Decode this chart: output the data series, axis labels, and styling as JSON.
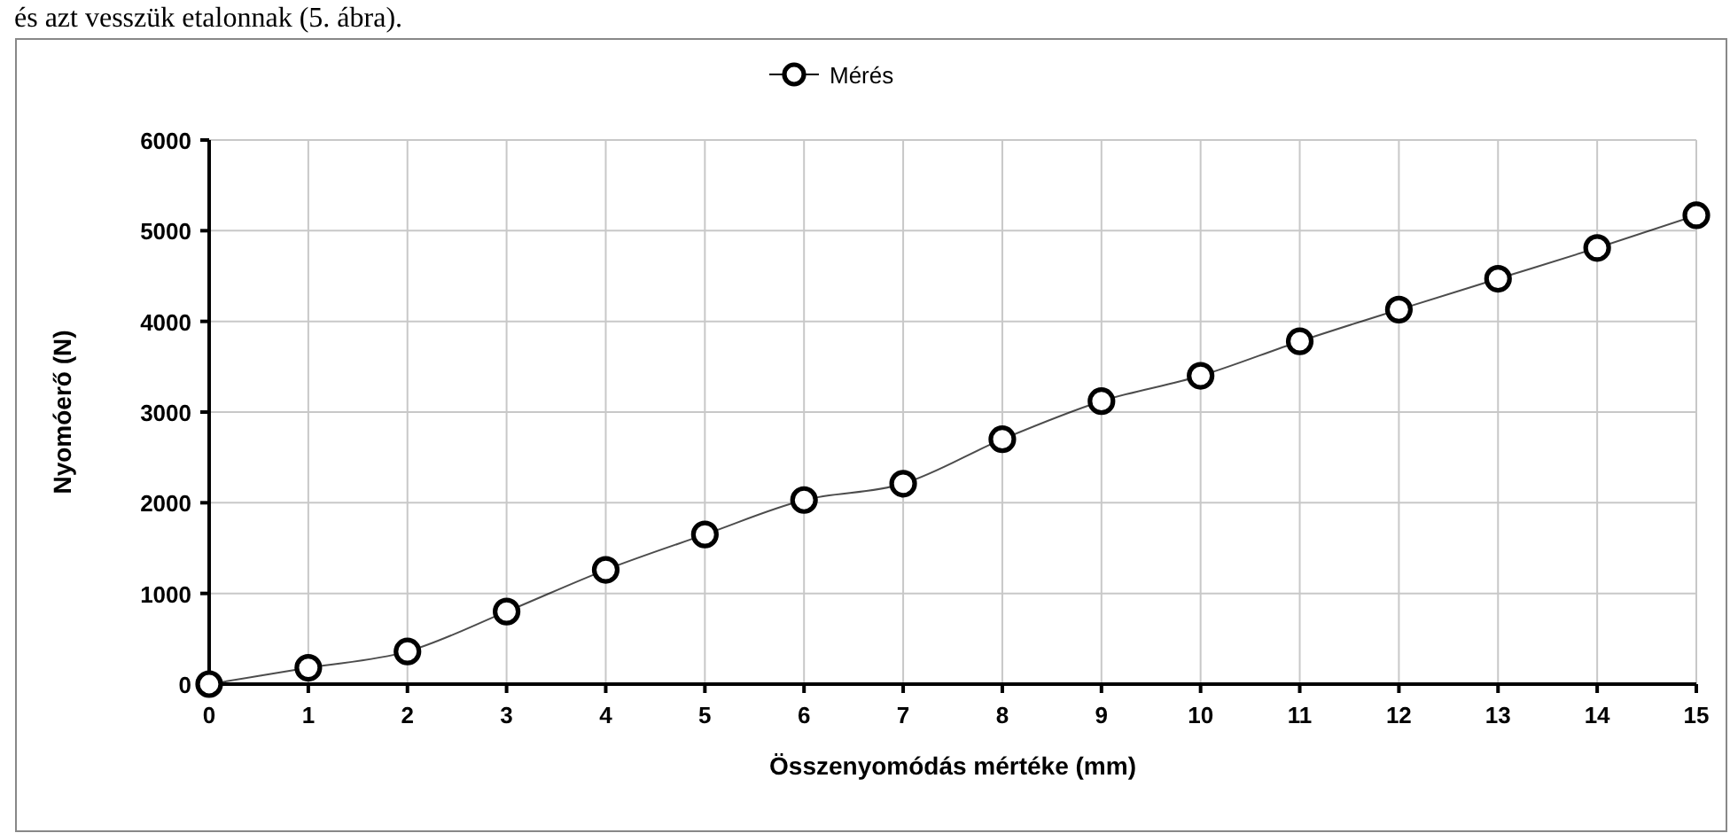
{
  "chart_data": {
    "type": "line",
    "xlabel": "Összenyomódás mértéke (mm)",
    "ylabel": "Nyomóerő (N)",
    "annotations": [
      "és azt vesszük etalonnak (5. ábra)."
    ],
    "x": [
      0,
      1,
      2,
      3,
      4,
      5,
      6,
      7,
      8,
      9,
      10,
      11,
      12,
      13,
      14,
      15
    ],
    "series": [
      {
        "name": "Mérés",
        "color": "#000000",
        "values": [
          0,
          180,
          360,
          800,
          1260,
          1650,
          2030,
          2210,
          2700,
          3120,
          3400,
          3780,
          4130,
          4470,
          4810,
          5170
        ]
      }
    ],
    "xlim": [
      0,
      15
    ],
    "xticks": [
      0,
      1,
      2,
      3,
      4,
      5,
      6,
      7,
      8,
      9,
      10,
      11,
      12,
      13,
      14,
      15
    ],
    "ylim": [
      0,
      6000
    ],
    "yticks": [
      0,
      1000,
      2000,
      3000,
      4000,
      5000,
      6000
    ],
    "grid": true,
    "legend": "top",
    "marker": "circle",
    "line_style": "solid"
  }
}
